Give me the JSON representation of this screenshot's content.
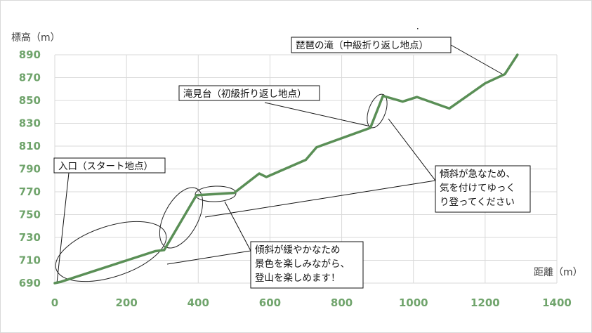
{
  "chart_data": {
    "type": "line",
    "ylabel": "標高（m）",
    "xlabel": "距離（m）",
    "xlim": [
      0,
      1400
    ],
    "ylim": [
      690,
      890
    ],
    "xticks": [
      "0",
      "200",
      "400",
      "600",
      "800",
      "1000",
      "1200",
      "1400"
    ],
    "yticks": [
      "690",
      "710",
      "730",
      "750",
      "770",
      "790",
      "810",
      "830",
      "850",
      "870",
      "890"
    ],
    "grid": true,
    "line_color": "#5a8f56",
    "series": [
      {
        "x": [
          0,
          15,
          280,
          305,
          395,
          500,
          570,
          590,
          700,
          730,
          880,
          915,
          970,
          1010,
          1100,
          1200,
          1255,
          1290
        ],
        "y": [
          690,
          691,
          718,
          719,
          767,
          769,
          786,
          783,
          798,
          809,
          826,
          854,
          849,
          853,
          843,
          865,
          873,
          890
        ]
      }
    ],
    "annotations": [
      {
        "text": "入口（スタート地点）"
      },
      {
        "text": "滝見台（初級折り返し地点）"
      },
      {
        "text": "琵琶の滝（中級折り返し地点）"
      },
      {
        "lines": [
          "傾斜が急なため、",
          "気を付けてゆっく",
          "り登ってください"
        ]
      },
      {
        "lines": [
          "傾斜が緩やかなため",
          "景色を楽しみながら、",
          "登山を楽しめます！"
        ]
      }
    ]
  }
}
